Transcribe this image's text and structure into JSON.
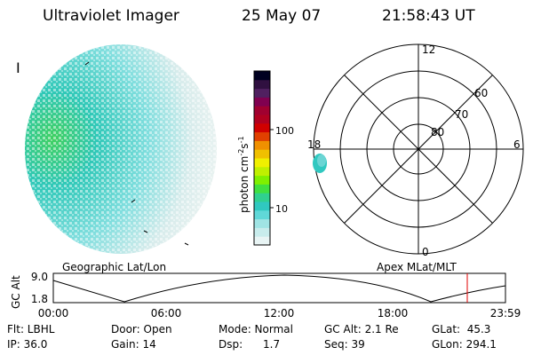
{
  "header": {
    "instrument": "Ultraviolet Imager",
    "date": "25 May 07",
    "time": "21:58:43 UT"
  },
  "colorbar": {
    "label_html": "photon cm<tspan dy='-5' font-size='8'>-2</tspan><tspan dy='5'>s</tspan><tspan dy='-5' font-size='8'>-1</tspan>",
    "ticks": [
      "100",
      "10"
    ],
    "colors": [
      "#e8f4f4",
      "#c8ecec",
      "#a0e4e4",
      "#60d8d8",
      "#30c8c0",
      "#30d090",
      "#40e040",
      "#80f000",
      "#c0f000",
      "#f0f000",
      "#f0c000",
      "#f09000",
      "#e04000",
      "#d00000",
      "#b00020",
      "#a00030",
      "#800050",
      "#502060",
      "#301040",
      "#000020"
    ]
  },
  "left_panel": {
    "label": "Geographic Lat/Lon",
    "mark": "I"
  },
  "polar": {
    "labels": {
      "top": "12",
      "bottom": "0",
      "left": "18",
      "right": "6"
    },
    "rings": [
      "80",
      "70",
      "60"
    ]
  },
  "right_panel": {
    "label": "Apex MLat/MLT"
  },
  "altitude_plot": {
    "ylabel": "GC Alt",
    "yticks": [
      "9.0",
      "1.8"
    ],
    "xticks": [
      "00:00",
      "06:00",
      "12:00",
      "18:00",
      "23:59"
    ],
    "current_marker_color": "#e00000"
  },
  "footer": {
    "flt": "Flt: LBHL",
    "ip": "IP: 36.0",
    "door": "Door: Open",
    "gain": "Gain: 14",
    "mode": "Mode: Normal",
    "dsp": "Dsp:      1.7",
    "gcalt": "GC Alt: 2.1 Re",
    "seq": "Seq: 39",
    "glat": "GLat:  45.3",
    "glon": "GLon: 294.1"
  }
}
